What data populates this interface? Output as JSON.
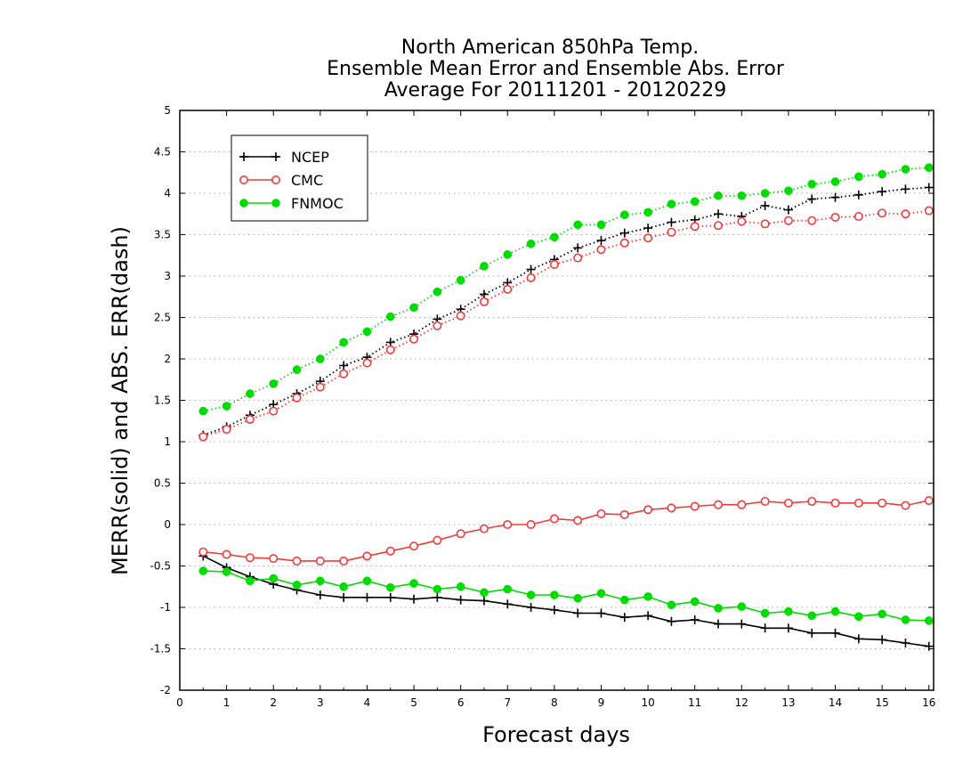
{
  "chart_data": {
    "type": "line",
    "title": [
      "North American 850hPa Temp.",
      "Ensemble Mean Error and Ensemble Abs. Error",
      "Average For 20111201 - 20120229"
    ],
    "xlabel": "Forecast days",
    "ylabel": "MERR(solid) and ABS. ERR(dash)",
    "xlim": [
      0,
      16.1
    ],
    "ylim": [
      -2,
      5
    ],
    "xticks": [
      0,
      1,
      2,
      3,
      4,
      5,
      6,
      7,
      8,
      9,
      10,
      11,
      12,
      13,
      14,
      15,
      16
    ],
    "yticks": [
      -2,
      -1.5,
      -1,
      -0.5,
      0,
      0.5,
      1,
      1.5,
      2,
      2.5,
      3,
      3.5,
      4,
      4.5,
      5
    ],
    "ytick_labels": [
      "-2",
      "-1.5",
      "-1",
      "-0.5",
      "0",
      "0.5",
      "1",
      "1.5",
      "2",
      "2.5",
      "3",
      "3.5",
      "4",
      "4.5",
      "5"
    ],
    "grid": "horizontal dotted",
    "legend_position": "top-left",
    "x": [
      0.5,
      1,
      1.5,
      2,
      2.5,
      3,
      3.5,
      4,
      4.5,
      5,
      5.5,
      6,
      6.5,
      7,
      7.5,
      8,
      8.5,
      9,
      9.5,
      10,
      10.5,
      11,
      11.5,
      12,
      12.5,
      13,
      13.5,
      14,
      14.5,
      15,
      15.5,
      16
    ],
    "series": [
      {
        "name": "NCEP",
        "color": "#000000",
        "marker": "plus",
        "style": "dotted",
        "metric": "abs",
        "values": [
          1.08,
          1.18,
          1.32,
          1.45,
          1.58,
          1.73,
          1.92,
          2.02,
          2.2,
          2.3,
          2.48,
          2.6,
          2.78,
          2.92,
          3.08,
          3.2,
          3.34,
          3.43,
          3.52,
          3.58,
          3.65,
          3.68,
          3.75,
          3.72,
          3.85,
          3.8,
          3.93,
          3.95,
          3.98,
          4.02,
          4.05,
          4.07
        ]
      },
      {
        "name": "CMC",
        "color": "#ef3b3b",
        "marker": "circle-open",
        "style": "dotted",
        "metric": "abs",
        "values": [
          1.06,
          1.15,
          1.27,
          1.37,
          1.53,
          1.66,
          1.82,
          1.95,
          2.11,
          2.24,
          2.4,
          2.52,
          2.69,
          2.84,
          2.98,
          3.14,
          3.22,
          3.32,
          3.4,
          3.46,
          3.53,
          3.6,
          3.61,
          3.66,
          3.63,
          3.67,
          3.67,
          3.71,
          3.72,
          3.76,
          3.75,
          3.79
        ]
      },
      {
        "name": "FNMOC",
        "color": "#00dc00",
        "marker": "circle-filled",
        "style": "dotted",
        "metric": "abs",
        "values": [
          1.37,
          1.43,
          1.58,
          1.7,
          1.87,
          2.0,
          2.2,
          2.33,
          2.51,
          2.62,
          2.81,
          2.95,
          3.12,
          3.26,
          3.39,
          3.47,
          3.62,
          3.62,
          3.74,
          3.77,
          3.87,
          3.9,
          3.97,
          3.97,
          4.0,
          4.03,
          4.11,
          4.14,
          4.2,
          4.23,
          4.29,
          4.31
        ]
      },
      {
        "name": "NCEP",
        "color": "#000000",
        "marker": "plus",
        "style": "solid",
        "metric": "mean",
        "values": [
          -0.38,
          -0.52,
          -0.63,
          -0.72,
          -0.79,
          -0.85,
          -0.88,
          -0.88,
          -0.88,
          -0.9,
          -0.88,
          -0.91,
          -0.92,
          -0.96,
          -1.0,
          -1.03,
          -1.07,
          -1.07,
          -1.12,
          -1.1,
          -1.17,
          -1.15,
          -1.2,
          -1.2,
          -1.25,
          -1.25,
          -1.31,
          -1.31,
          -1.38,
          -1.39,
          -1.43,
          -1.47
        ]
      },
      {
        "name": "CMC",
        "color": "#ef3b3b",
        "marker": "circle-open",
        "style": "solid",
        "metric": "mean",
        "values": [
          -0.33,
          -0.36,
          -0.4,
          -0.41,
          -0.44,
          -0.44,
          -0.44,
          -0.38,
          -0.32,
          -0.26,
          -0.19,
          -0.11,
          -0.05,
          0.0,
          0.0,
          0.07,
          0.05,
          0.13,
          0.12,
          0.18,
          0.2,
          0.22,
          0.24,
          0.24,
          0.28,
          0.26,
          0.28,
          0.26,
          0.26,
          0.26,
          0.23,
          0.29
        ]
      },
      {
        "name": "FNMOC",
        "color": "#00dc00",
        "marker": "circle-filled",
        "style": "solid",
        "metric": "mean",
        "values": [
          -0.56,
          -0.57,
          -0.68,
          -0.65,
          -0.73,
          -0.68,
          -0.75,
          -0.68,
          -0.76,
          -0.71,
          -0.78,
          -0.75,
          -0.82,
          -0.78,
          -0.85,
          -0.85,
          -0.89,
          -0.83,
          -0.91,
          -0.87,
          -0.97,
          -0.93,
          -1.01,
          -0.99,
          -1.07,
          -1.05,
          -1.1,
          -1.05,
          -1.11,
          -1.08,
          -1.15,
          -1.16
        ]
      }
    ],
    "legend": [
      {
        "label": "NCEP",
        "color": "#000000",
        "marker": "plus"
      },
      {
        "label": "CMC",
        "color": "#ef3b3b",
        "marker": "circle-open"
      },
      {
        "label": "FNMOC",
        "color": "#00dc00",
        "marker": "circle-filled"
      }
    ]
  }
}
